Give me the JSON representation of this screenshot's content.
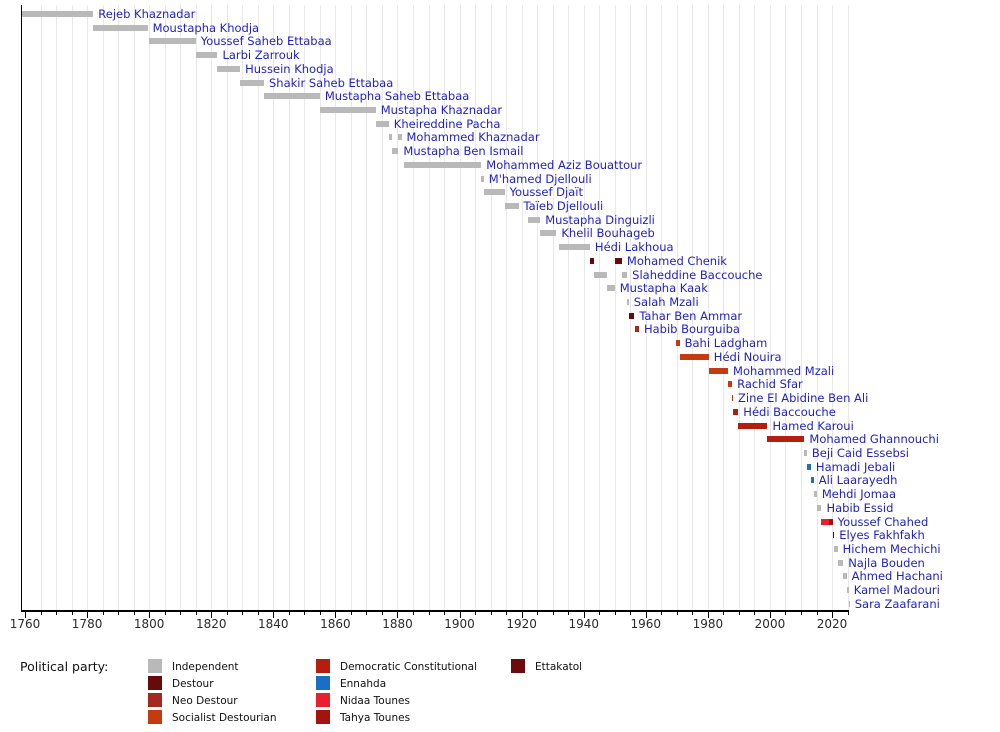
{
  "legend": {
    "title": "Political party:",
    "columns": [
      [
        "independent",
        "destour",
        "neo_destour",
        "socialist_destourian"
      ],
      [
        "democratic_constitutional",
        "ennahda",
        "nidaa_tounes",
        "tahya_tounes"
      ],
      [
        "ettakatol"
      ]
    ]
  },
  "chart_data": {
    "type": "timeline",
    "unit": "year",
    "axis": {
      "range": [
        1759,
        2025
      ],
      "major_ticks": [
        1760,
        1780,
        1800,
        1820,
        1840,
        1860,
        1880,
        1900,
        1920,
        1940,
        1960,
        1980,
        2000,
        2020
      ],
      "minor_tick_step": 5,
      "grid": true
    },
    "parties": {
      "independent": {
        "label": "Independent",
        "color": "#b9b9b9"
      },
      "destour": {
        "label": "Destour",
        "color": "#650b0b"
      },
      "neo_destour": {
        "label": "Neo Destour",
        "color": "#a42722"
      },
      "socialist_destourian": {
        "label": "Socialist Destourian",
        "color": "#c43b12"
      },
      "democratic_constitutional": {
        "label": "Democratic Constitutional",
        "color": "#b51d0d"
      },
      "ennahda": {
        "label": "Ennahda",
        "color": "#1a6fc4"
      },
      "nidaa_tounes": {
        "label": "Nidaa Tounes",
        "color": "#e8212e"
      },
      "tahya_tounes": {
        "label": "Tahya Tounes",
        "color": "#a51310"
      },
      "ettakatol": {
        "label": "Ettakatol",
        "color": "#6b0b0b"
      }
    },
    "rows": [
      {
        "name": "Rejeb Khaznadar",
        "party": "independent",
        "terms": [
          [
            1759.0,
            1782.0
          ]
        ]
      },
      {
        "name": "Moustapha Khodja",
        "party": "independent",
        "terms": [
          [
            1782.0,
            1799.5
          ]
        ]
      },
      {
        "name": "Youssef Saheb Ettabaa",
        "party": "independent",
        "terms": [
          [
            1800.0,
            1815.0
          ]
        ]
      },
      {
        "name": "Larbi Zarrouk",
        "party": "independent",
        "terms": [
          [
            1815.0,
            1822.0
          ]
        ]
      },
      {
        "name": "Hussein Khodja",
        "party": "independent",
        "terms": [
          [
            1822.0,
            1829.3
          ]
        ]
      },
      {
        "name": "Shakir Saheb Ettabaa",
        "party": "independent",
        "terms": [
          [
            1829.3,
            1837.0
          ]
        ]
      },
      {
        "name": "Mustapha Saheb Ettabaa",
        "party": "independent",
        "terms": [
          [
            1837.0,
            1855.0
          ]
        ]
      },
      {
        "name": "Mustapha Khaznadar",
        "party": "independent",
        "terms": [
          [
            1855.0,
            1873.0
          ]
        ]
      },
      {
        "name": "Kheireddine Pacha",
        "party": "independent",
        "terms": [
          [
            1873.0,
            1877.2
          ]
        ]
      },
      {
        "name": "Mohammed Khaznadar",
        "party": "independent",
        "terms": [
          [
            1877.2,
            1878.2
          ],
          [
            1880.3,
            1881.3
          ]
        ]
      },
      {
        "name": "Mustapha Ben Ismail",
        "party": "independent",
        "terms": [
          [
            1878.2,
            1880.3
          ]
        ]
      },
      {
        "name": "Mohammed Aziz Bouattour",
        "party": "independent",
        "terms": [
          [
            1882.0,
            1907.0
          ]
        ]
      },
      {
        "name": "M'hamed Djellouli",
        "party": "independent",
        "terms": [
          [
            1906.8,
            1907.8
          ]
        ]
      },
      {
        "name": "Youssef Djaït",
        "party": "independent",
        "terms": [
          [
            1907.8,
            1914.5
          ]
        ]
      },
      {
        "name": "Taïeb Djellouli",
        "party": "independent",
        "terms": [
          [
            1914.5,
            1919.0
          ]
        ]
      },
      {
        "name": "Mustapha Dinguizli",
        "party": "independent",
        "terms": [
          [
            1922.0,
            1926.0
          ]
        ]
      },
      {
        "name": "Khelil Bouhageb",
        "party": "independent",
        "terms": [
          [
            1926.0,
            1931.2
          ]
        ]
      },
      {
        "name": "Hédi Lakhoua",
        "party": "independent",
        "terms": [
          [
            1932.0,
            1942.0
          ]
        ]
      },
      {
        "name": "Mohamed Chenik",
        "party": "destour",
        "terms": [
          [
            1942.0,
            1943.2
          ],
          [
            1950.0,
            1952.3
          ]
        ]
      },
      {
        "name": "Slaheddine Baccouche",
        "party": "independent",
        "terms": [
          [
            1943.2,
            1947.5
          ],
          [
            1952.3,
            1954.0
          ]
        ]
      },
      {
        "name": "Mustapha Kaak",
        "party": "independent",
        "terms": [
          [
            1947.5,
            1950.0
          ]
        ]
      },
      {
        "name": "Salah Mzali",
        "party": "independent",
        "terms": [
          [
            1954.0,
            1954.5
          ]
        ]
      },
      {
        "name": "Tahar Ben Ammar",
        "party": "destour",
        "terms": [
          [
            1954.5,
            1956.3
          ]
        ]
      },
      {
        "name": "Habib Bourguiba",
        "party": "neo_destour",
        "terms": [
          [
            1956.5,
            1957.8
          ]
        ]
      },
      {
        "name": "Bahi Ladgham",
        "party": "socialist_destourian",
        "terms": [
          [
            1969.8,
            1970.9
          ]
        ]
      },
      {
        "name": "Hédi Nouira",
        "party": "socialist_destourian",
        "terms": [
          [
            1970.9,
            1980.3
          ]
        ]
      },
      {
        "name": "Mohammed Mzali",
        "party": "socialist_destourian",
        "terms": [
          [
            1980.3,
            1986.5
          ]
        ]
      },
      {
        "name": "Rachid Sfar",
        "party": "socialist_destourian",
        "terms": [
          [
            1986.5,
            1987.8
          ]
        ]
      },
      {
        "name": "Zine El Abidine Ben Ali",
        "party": "socialist_destourian",
        "terms": [
          [
            1987.8,
            1988.1
          ]
        ]
      },
      {
        "name": "Hédi Baccouche",
        "party": "democratic_constitutional",
        "terms": [
          [
            1988.1,
            1989.8
          ]
        ]
      },
      {
        "name": "Hamed Karoui",
        "party": "democratic_constitutional",
        "terms": [
          [
            1989.8,
            1999.2
          ]
        ]
      },
      {
        "name": "Mohamed Ghannouchi",
        "party": "democratic_constitutional",
        "terms": [
          [
            1999.2,
            2011.1
          ]
        ]
      },
      {
        "name": "Beji Caid Essebsi",
        "party": "independent",
        "terms": [
          [
            2011.1,
            2011.9
          ]
        ]
      },
      {
        "name": "Hamadi Jebali",
        "party": "ennahda",
        "terms": [
          [
            2011.9,
            2013.2
          ]
        ]
      },
      {
        "name": "Ali Laarayedh",
        "party": "ennahda",
        "terms": [
          [
            2013.2,
            2014.1
          ]
        ]
      },
      {
        "name": "Mehdi Jomaa",
        "party": "independent",
        "terms": [
          [
            2014.1,
            2015.1
          ]
        ]
      },
      {
        "name": "Habib Essid",
        "party": "independent",
        "terms": [
          [
            2015.1,
            2016.6
          ]
        ]
      },
      {
        "name": "Youssef Chahed",
        "party": "nidaa_tounes",
        "terms": [
          [
            2016.6,
            2019.0,
            "nidaa_tounes"
          ],
          [
            2019.0,
            2020.2,
            "tahya_tounes"
          ]
        ]
      },
      {
        "name": "Elyes Fakhfakh",
        "party": "ettakatol",
        "terms": [
          [
            2020.2,
            2020.7
          ]
        ]
      },
      {
        "name": "Hichem Mechichi",
        "party": "independent",
        "terms": [
          [
            2020.7,
            2021.8
          ]
        ]
      },
      {
        "name": "Najla Bouden",
        "party": "independent",
        "terms": [
          [
            2021.8,
            2023.6
          ]
        ]
      },
      {
        "name": "Ahmed Hachani",
        "party": "independent",
        "terms": [
          [
            2023.6,
            2024.7
          ]
        ]
      },
      {
        "name": "Kamel Madouri",
        "party": "independent",
        "terms": [
          [
            2024.7,
            2025.4
          ]
        ]
      },
      {
        "name": "Sara Zaafarani",
        "party": "independent",
        "terms": [
          [
            2025.4,
            2025.7
          ]
        ]
      }
    ]
  }
}
